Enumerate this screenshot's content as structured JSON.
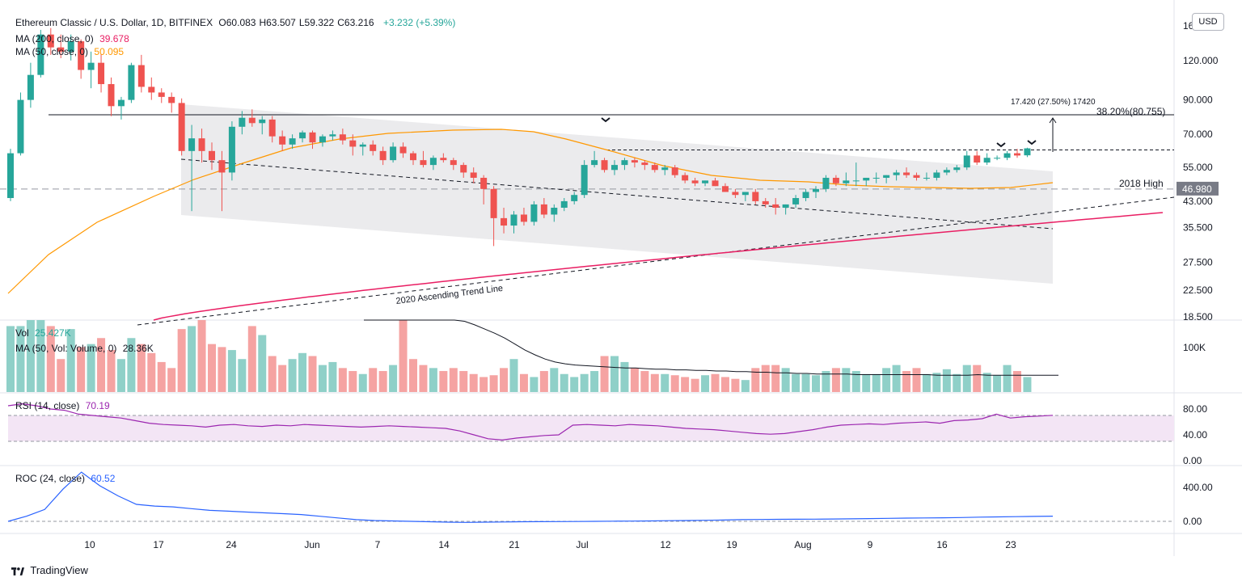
{
  "header": {
    "symbol": "Ethereum Classic / U.S. Dollar, 1D, BITFINEX",
    "ohlc": [
      {
        "k": "O",
        "v": "60.083"
      },
      {
        "k": "H",
        "v": "63.507"
      },
      {
        "k": "L",
        "v": "59.322"
      },
      {
        "k": "C",
        "v": "63.216"
      }
    ],
    "change": "+3.232 (+5.39%)",
    "ma200_label": "MA (200, close, 0)",
    "ma200_value": "39.678",
    "ma50_label": "MA (50, close, 0)",
    "ma50_value": "50.095",
    "currency_button": "USD"
  },
  "annotations": {
    "measure": "17.420 (27.50%) 17420",
    "fib": "38.20%(80.755)",
    "high_2018": "2018 High",
    "trend_line": "2020 Ascending Trend Line",
    "last_price_tag": "46.980"
  },
  "volume_pane": {
    "label": "Vol",
    "value": "25.427K",
    "ma_label": "MA (50, Vol: Volume, 0)",
    "ma_value": "28.36K",
    "axis": [
      "100K"
    ]
  },
  "rsi_pane": {
    "label": "RSI (14, close)",
    "value": "70.19",
    "axis": [
      "80.00",
      "40.00",
      "0.00"
    ]
  },
  "roc_pane": {
    "label": "ROC (24, close)",
    "value": "60.52",
    "axis": [
      "400.00",
      "0.00"
    ]
  },
  "price_axis": [
    "120.000",
    "90.000",
    "70.000",
    "55.000",
    "43.000",
    "35.500",
    "27.500",
    "22.500",
    "18.500"
  ],
  "price_axis_top": "16",
  "x_axis": [
    "10",
    "17",
    "24",
    "Jun",
    "7",
    "14",
    "21",
    "Jul",
    "12",
    "19",
    "Aug",
    "9",
    "16",
    "23"
  ],
  "footer": {
    "brand": "TradingView"
  },
  "colors": {
    "up": "#26a69a",
    "down": "#ef5350",
    "ma50": "#ff9800",
    "ma200": "#e91e63",
    "rsi": "#9c27b0",
    "roc": "#2962ff"
  },
  "chart_data": {
    "type": "candlestick",
    "title": "Ethereum Classic / U.S. Dollar, 1D, BITFINEX",
    "ylabel": "USD",
    "log_scale": true,
    "candles": [
      {
        "t": "May 5",
        "o": 44,
        "h": 63,
        "l": 43,
        "c": 61
      },
      {
        "t": "May 6",
        "o": 61,
        "h": 95,
        "l": 60,
        "c": 90
      },
      {
        "t": "May 7",
        "o": 90,
        "h": 118,
        "l": 85,
        "c": 108
      },
      {
        "t": "May 8",
        "o": 108,
        "h": 150,
        "l": 106,
        "c": 145
      },
      {
        "t": "May 9",
        "o": 145,
        "h": 152,
        "l": 125,
        "c": 132
      },
      {
        "t": "May 10",
        "o": 132,
        "h": 145,
        "l": 122,
        "c": 128
      },
      {
        "t": "May 11",
        "o": 128,
        "h": 145,
        "l": 120,
        "c": 138
      },
      {
        "t": "May 12",
        "o": 138,
        "h": 140,
        "l": 105,
        "c": 112
      },
      {
        "t": "May 13",
        "o": 112,
        "h": 128,
        "l": 98,
        "c": 118
      },
      {
        "t": "May 14",
        "o": 118,
        "h": 126,
        "l": 95,
        "c": 101
      },
      {
        "t": "May 15",
        "o": 101,
        "h": 106,
        "l": 80,
        "c": 86
      },
      {
        "t": "May 16",
        "o": 86,
        "h": 92,
        "l": 78,
        "c": 90
      },
      {
        "t": "May 17",
        "o": 90,
        "h": 118,
        "l": 88,
        "c": 116
      },
      {
        "t": "May 18",
        "o": 116,
        "h": 125,
        "l": 95,
        "c": 99
      },
      {
        "t": "May 19",
        "o": 99,
        "h": 106,
        "l": 90,
        "c": 95
      },
      {
        "t": "May 20",
        "o": 95,
        "h": 98,
        "l": 88,
        "c": 92
      },
      {
        "t": "May 21",
        "o": 92,
        "h": 95,
        "l": 82,
        "c": 88
      },
      {
        "t": "May 22",
        "o": 88,
        "h": 91,
        "l": 60,
        "c": 62
      },
      {
        "t": "May 23",
        "o": 62,
        "h": 75,
        "l": 40,
        "c": 68
      },
      {
        "t": "May 24",
        "o": 68,
        "h": 73,
        "l": 57,
        "c": 62
      },
      {
        "t": "May 25",
        "o": 62,
        "h": 66,
        "l": 54,
        "c": 58
      },
      {
        "t": "May 26",
        "o": 58,
        "h": 62,
        "l": 40,
        "c": 53
      },
      {
        "t": "May 27",
        "o": 53,
        "h": 77,
        "l": 50,
        "c": 74
      },
      {
        "t": "May 28",
        "o": 74,
        "h": 83,
        "l": 70,
        "c": 79
      },
      {
        "t": "May 29",
        "o": 79,
        "h": 84,
        "l": 74,
        "c": 76
      },
      {
        "t": "May 30",
        "o": 76,
        "h": 80,
        "l": 70,
        "c": 78
      },
      {
        "t": "May 31",
        "o": 78,
        "h": 80,
        "l": 66,
        "c": 69
      },
      {
        "t": "Jun 1",
        "o": 69,
        "h": 72,
        "l": 62,
        "c": 65
      },
      {
        "t": "Jun 2",
        "o": 65,
        "h": 70,
        "l": 63,
        "c": 68
      },
      {
        "t": "Jun 3",
        "o": 68,
        "h": 72,
        "l": 66,
        "c": 71
      },
      {
        "t": "Jun 4",
        "o": 71,
        "h": 72,
        "l": 63,
        "c": 66
      },
      {
        "t": "Jun 5",
        "o": 66,
        "h": 70,
        "l": 64,
        "c": 69
      },
      {
        "t": "Jun 6",
        "o": 69,
        "h": 72,
        "l": 67,
        "c": 70
      },
      {
        "t": "Jun 7",
        "o": 70,
        "h": 73,
        "l": 65,
        "c": 67
      },
      {
        "t": "Jun 8",
        "o": 67,
        "h": 70,
        "l": 60,
        "c": 64
      },
      {
        "t": "Jun 9",
        "o": 64,
        "h": 66,
        "l": 60,
        "c": 65
      },
      {
        "t": "Jun 10",
        "o": 65,
        "h": 67,
        "l": 60,
        "c": 62
      },
      {
        "t": "Jun 11",
        "o": 62,
        "h": 64,
        "l": 56,
        "c": 58
      },
      {
        "t": "Jun 12",
        "o": 58,
        "h": 66,
        "l": 57,
        "c": 64
      },
      {
        "t": "Jun 13",
        "o": 64,
        "h": 66,
        "l": 59,
        "c": 61
      },
      {
        "t": "Jun 14",
        "o": 61,
        "h": 62,
        "l": 56,
        "c": 58
      },
      {
        "t": "Jun 15",
        "o": 58,
        "h": 62,
        "l": 55,
        "c": 56
      },
      {
        "t": "Jun 16",
        "o": 56,
        "h": 60,
        "l": 54,
        "c": 59
      },
      {
        "t": "Jun 17",
        "o": 59,
        "h": 61,
        "l": 57,
        "c": 58
      },
      {
        "t": "Jun 18",
        "o": 58,
        "h": 59,
        "l": 54,
        "c": 56
      },
      {
        "t": "Jun 19",
        "o": 56,
        "h": 57,
        "l": 51,
        "c": 53
      },
      {
        "t": "Jun 20",
        "o": 53,
        "h": 55,
        "l": 49,
        "c": 51
      },
      {
        "t": "Jun 21",
        "o": 51,
        "h": 52,
        "l": 42,
        "c": 47
      },
      {
        "t": "Jun 22",
        "o": 47,
        "h": 48,
        "l": 31,
        "c": 38
      },
      {
        "t": "Jun 23",
        "o": 38,
        "h": 41,
        "l": 34,
        "c": 36
      },
      {
        "t": "Jun 24",
        "o": 36,
        "h": 40,
        "l": 34,
        "c": 39
      },
      {
        "t": "Jun 25",
        "o": 39,
        "h": 41,
        "l": 36,
        "c": 37
      },
      {
        "t": "Jun 26",
        "o": 37,
        "h": 43,
        "l": 36,
        "c": 42
      },
      {
        "t": "Jun 27",
        "o": 42,
        "h": 44,
        "l": 38,
        "c": 39
      },
      {
        "t": "Jun 28",
        "o": 39,
        "h": 42,
        "l": 37,
        "c": 41
      },
      {
        "t": "Jun 29",
        "o": 41,
        "h": 44,
        "l": 40,
        "c": 43
      },
      {
        "t": "Jun 30",
        "o": 43,
        "h": 46,
        "l": 42,
        "c": 45
      },
      {
        "t": "Jul 1",
        "o": 45,
        "h": 58,
        "l": 44,
        "c": 56
      },
      {
        "t": "Jul 2",
        "o": 56,
        "h": 62,
        "l": 55,
        "c": 58
      },
      {
        "t": "Jul 3",
        "o": 58,
        "h": 59,
        "l": 53,
        "c": 54
      },
      {
        "t": "Jul 4",
        "o": 54,
        "h": 58,
        "l": 52,
        "c": 56
      },
      {
        "t": "Jul 5",
        "o": 56,
        "h": 59,
        "l": 54,
        "c": 58
      },
      {
        "t": "Jul 6",
        "o": 58,
        "h": 59,
        "l": 55,
        "c": 57
      },
      {
        "t": "Jul 7",
        "o": 57,
        "h": 58,
        "l": 54,
        "c": 56
      },
      {
        "t": "Jul 8",
        "o": 56,
        "h": 57,
        "l": 53,
        "c": 54
      },
      {
        "t": "Jul 9",
        "o": 54,
        "h": 56,
        "l": 52,
        "c": 55
      },
      {
        "t": "Jul 10",
        "o": 55,
        "h": 56,
        "l": 51,
        "c": 52
      },
      {
        "t": "Jul 11",
        "o": 52,
        "h": 53,
        "l": 49,
        "c": 50
      },
      {
        "t": "Jul 12",
        "o": 50,
        "h": 51,
        "l": 48,
        "c": 49
      },
      {
        "t": "Jul 13",
        "o": 49,
        "h": 50,
        "l": 48,
        "c": 50
      },
      {
        "t": "Jul 14",
        "o": 50,
        "h": 51,
        "l": 48,
        "c": 48
      },
      {
        "t": "Jul 15",
        "o": 48,
        "h": 49,
        "l": 46,
        "c": 46
      },
      {
        "t": "Jul 16",
        "o": 46,
        "h": 47,
        "l": 44,
        "c": 45
      },
      {
        "t": "Jul 17",
        "o": 45,
        "h": 46,
        "l": 43,
        "c": 46
      },
      {
        "t": "Jul 18",
        "o": 46,
        "h": 47,
        "l": 42,
        "c": 43
      },
      {
        "t": "Jul 19",
        "o": 43,
        "h": 44,
        "l": 41,
        "c": 42
      },
      {
        "t": "Jul 20",
        "o": 42,
        "h": 44,
        "l": 39,
        "c": 41
      },
      {
        "t": "Jul 21",
        "o": 41,
        "h": 42,
        "l": 39,
        "c": 42
      },
      {
        "t": "Jul 22",
        "o": 42,
        "h": 45,
        "l": 41,
        "c": 44
      },
      {
        "t": "Jul 23",
        "o": 44,
        "h": 47,
        "l": 43,
        "c": 46
      },
      {
        "t": "Jul 24",
        "o": 46,
        "h": 48,
        "l": 44,
        "c": 47
      },
      {
        "t": "Jul 25",
        "o": 47,
        "h": 52,
        "l": 46,
        "c": 51
      },
      {
        "t": "Jul 26",
        "o": 51,
        "h": 52,
        "l": 48,
        "c": 49
      },
      {
        "t": "Jul 27",
        "o": 49,
        "h": 53,
        "l": 48,
        "c": 50
      },
      {
        "t": "Jul 28",
        "o": 50,
        "h": 57,
        "l": 48,
        "c": 50
      },
      {
        "t": "Jul 29",
        "o": 50,
        "h": 51,
        "l": 48,
        "c": 51
      },
      {
        "t": "Jul 30",
        "o": 51,
        "h": 53,
        "l": 49,
        "c": 51
      },
      {
        "t": "Jul 31",
        "o": 51,
        "h": 52,
        "l": 49,
        "c": 52
      },
      {
        "t": "Aug 1",
        "o": 52,
        "h": 54,
        "l": 50,
        "c": 53
      },
      {
        "t": "Aug 2",
        "o": 53,
        "h": 55,
        "l": 51,
        "c": 52
      },
      {
        "t": "Aug 3",
        "o": 52,
        "h": 53,
        "l": 50,
        "c": 51
      },
      {
        "t": "Aug 4",
        "o": 51,
        "h": 53,
        "l": 50,
        "c": 51
      },
      {
        "t": "Aug 5",
        "o": 51,
        "h": 54,
        "l": 50,
        "c": 53
      },
      {
        "t": "Aug 6",
        "o": 53,
        "h": 55,
        "l": 52,
        "c": 54
      },
      {
        "t": "Aug 7",
        "o": 54,
        "h": 56,
        "l": 53,
        "c": 55
      },
      {
        "t": "Aug 8",
        "o": 55,
        "h": 62,
        "l": 54,
        "c": 60
      },
      {
        "t": "Aug 9",
        "o": 60,
        "h": 62,
        "l": 56,
        "c": 57
      },
      {
        "t": "Aug 10",
        "o": 57,
        "h": 61,
        "l": 56,
        "c": 59
      },
      {
        "t": "Aug 11",
        "o": 59,
        "h": 60,
        "l": 58,
        "c": 59
      },
      {
        "t": "Aug 12",
        "o": 59,
        "h": 62,
        "l": 58,
        "c": 61
      },
      {
        "t": "Aug 13",
        "o": 61,
        "h": 63,
        "l": 59,
        "c": 60
      },
      {
        "t": "Aug 14",
        "o": 60.083,
        "h": 63.507,
        "l": 59.322,
        "c": 63.216
      }
    ],
    "volume_k": [
      110,
      110,
      120,
      130,
      110,
      55,
      105,
      75,
      80,
      90,
      70,
      55,
      90,
      80,
      65,
      50,
      40,
      105,
      110,
      120,
      80,
      75,
      70,
      55,
      110,
      95,
      60,
      45,
      55,
      65,
      60,
      45,
      50,
      40,
      35,
      30,
      40,
      35,
      45,
      120,
      55,
      45,
      40,
      35,
      40,
      35,
      30,
      25,
      28,
      40,
      55,
      30,
      25,
      35,
      40,
      30,
      25,
      30,
      35,
      60,
      60,
      50,
      40,
      35,
      30,
      30,
      28,
      25,
      22,
      28,
      30,
      25,
      22,
      20,
      40,
      45,
      45,
      40,
      30,
      30,
      28,
      35,
      40,
      40,
      35,
      30,
      30,
      40,
      45,
      35,
      40,
      30,
      32,
      38,
      30,
      45,
      45,
      32,
      28,
      45,
      35,
      25
    ],
    "volume_ma50_k": [
      150,
      148,
      145,
      142,
      140,
      137,
      134,
      130,
      126,
      122,
      118,
      112,
      105,
      98,
      90,
      80,
      70,
      62,
      55,
      50,
      47,
      45,
      44,
      43,
      42,
      41,
      40,
      40,
      39,
      38,
      38,
      37,
      37,
      36,
      36,
      35,
      35,
      34,
      34,
      33,
      33,
      32,
      32,
      31,
      31,
      30,
      30,
      30,
      30,
      29,
      29,
      29,
      29,
      29,
      29,
      29,
      29,
      28,
      28,
      28,
      28,
      29,
      28,
      28,
      28,
      28,
      28,
      28,
      28,
      28
    ],
    "rsi": [
      85,
      88,
      85,
      80,
      78,
      72,
      70,
      68,
      66,
      62,
      58,
      56,
      55,
      54,
      52,
      55,
      56,
      54,
      53,
      55,
      54,
      56,
      55,
      54,
      53,
      52,
      53,
      54,
      53,
      52,
      51,
      50,
      46,
      40,
      34,
      32,
      35,
      37,
      39,
      40,
      55,
      56,
      55,
      54,
      56,
      55,
      54,
      52,
      50,
      49,
      48,
      46,
      44,
      42,
      41,
      42,
      45,
      48,
      52,
      55,
      56,
      57,
      56,
      58,
      59,
      60,
      58,
      62,
      63,
      65,
      72,
      66,
      68,
      69,
      70.19
    ],
    "roc": [
      0,
      60,
      140,
      380,
      580,
      420,
      300,
      200,
      180,
      170,
      150,
      130,
      120,
      110,
      100,
      90,
      80,
      60,
      40,
      20,
      10,
      5,
      0,
      -5,
      -10,
      -12,
      -10,
      -8,
      -5,
      -4,
      -3,
      -2,
      0,
      2,
      3,
      5,
      8,
      10,
      12,
      15,
      20,
      22,
      24,
      25,
      26,
      28,
      30,
      32,
      35,
      38,
      40,
      42,
      45,
      50,
      52,
      55,
      58,
      60.52
    ],
    "reference_lines": {
      "resistance_fib_38_2": 80.755,
      "high_2018": 46.98,
      "horizontal_resistance": 62.5
    }
  }
}
